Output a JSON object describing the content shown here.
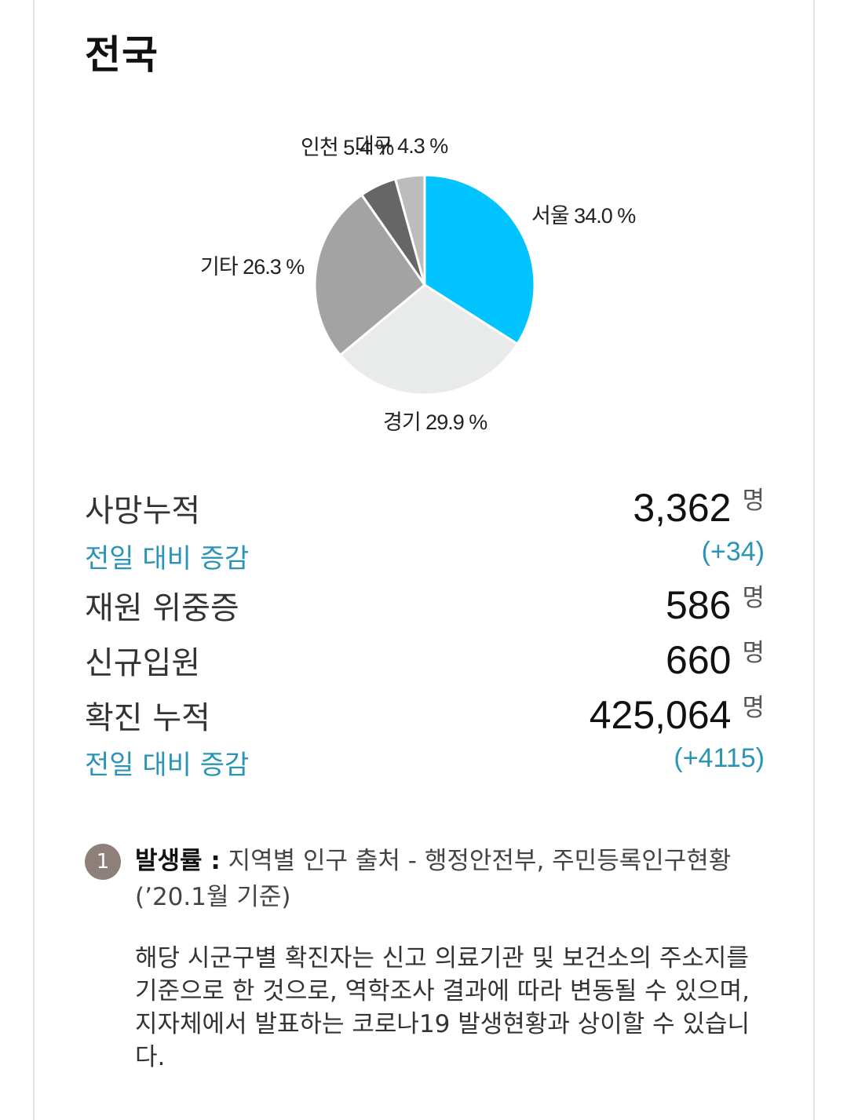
{
  "header": {
    "title": "전국"
  },
  "chart_data": {
    "type": "pie",
    "slices": [
      {
        "label": "서울",
        "value": 34.0,
        "display": "서울 34.0 %",
        "color": "#00c3ff"
      },
      {
        "label": "경기",
        "value": 29.9,
        "display": "경기 29.9 %",
        "color": "#e9ebea"
      },
      {
        "label": "기타",
        "value": 26.3,
        "display": "기타 26.3 %",
        "color": "#a3a3a3"
      },
      {
        "label": "인천",
        "value": 5.4,
        "display": "인천 5.4 %",
        "color": "#666666"
      },
      {
        "label": "대구",
        "value": 4.3,
        "display": "대구 4.3 %",
        "color": "#bcbcbc"
      }
    ]
  },
  "stats": {
    "deaths": {
      "label": "사망누적",
      "value": "3,362",
      "unit": "명"
    },
    "deaths_delta": {
      "label": "전일 대비 증감",
      "value": "(+34)"
    },
    "critical": {
      "label": "재원 위중증",
      "value": "586",
      "unit": "명"
    },
    "admitted": {
      "label": "신규입원",
      "value": "660",
      "unit": "명"
    },
    "confirmed": {
      "label": "확진 누적",
      "value": "425,064",
      "unit": "명"
    },
    "confirmed_delta": {
      "label": "전일 대비 증감",
      "value": "(+4115)"
    }
  },
  "note": {
    "badge": "1",
    "heading": "발생률 :",
    "text": " 지역별 인구 출처 - 행정안전부, 주민등록인구현황 (’20.1월 기준)",
    "body": "해당 시군구별 확진자는 신고 의료기관 및 보건소의 주소지를 기준으로 한 것으로, 역학조사 결과에 따라 변동될 수 있으며, 지자체에서 발표하는 코로나19 발생현황과 상이할 수 있습니다."
  }
}
